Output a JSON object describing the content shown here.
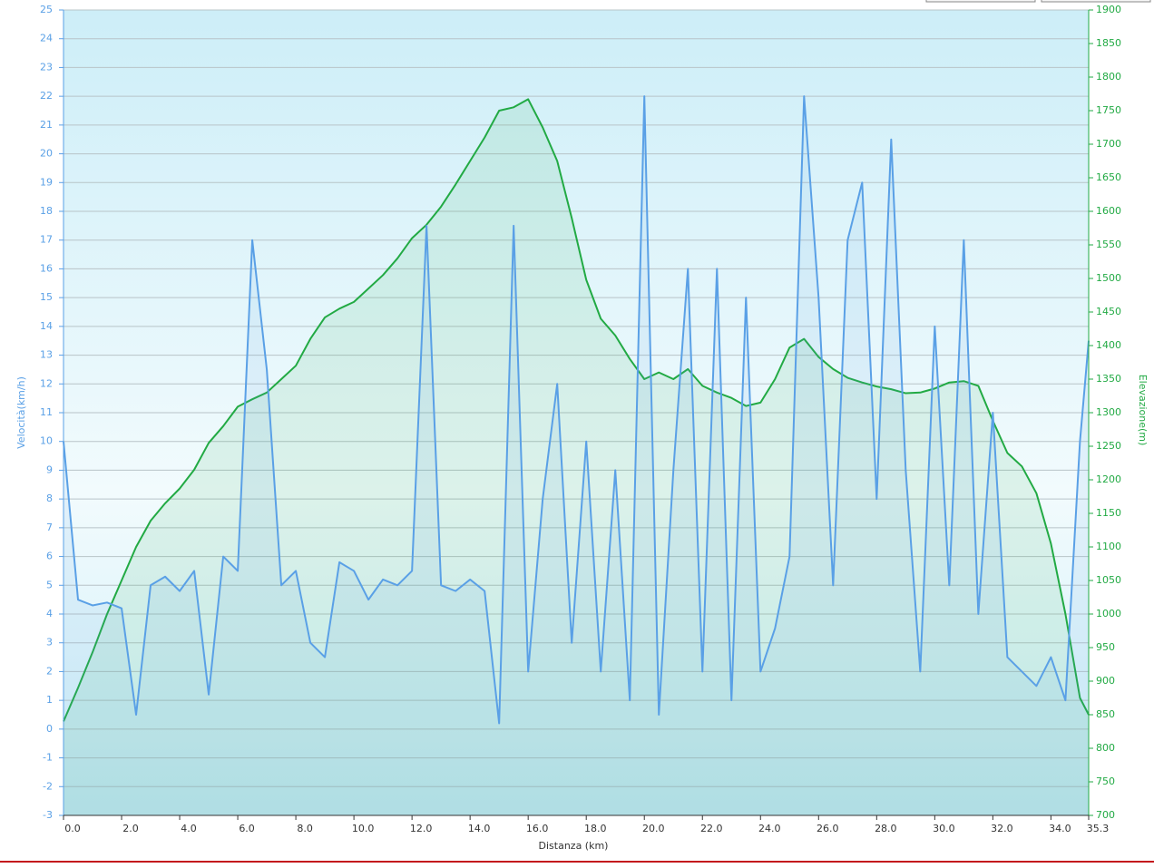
{
  "chart_data": {
    "type": "line",
    "x_label": "Distanza  (km)",
    "y_label": "Velocità(km/h)",
    "y2_label": "Elevazione(m)",
    "x": [
      0,
      0.5,
      1,
      1.5,
      2,
      2.5,
      3,
      3.5,
      4,
      4.5,
      5,
      5.5,
      6,
      6.5,
      7,
      7.5,
      8,
      8.5,
      9,
      9.5,
      10,
      10.5,
      11,
      11.5,
      12,
      12.5,
      13,
      13.5,
      14,
      14.5,
      15,
      15.5,
      16,
      16.5,
      17,
      17.5,
      18,
      18.5,
      19,
      19.5,
      20,
      20.5,
      21,
      21.5,
      22,
      22.5,
      23,
      23.5,
      24,
      24.5,
      25,
      25.5,
      26,
      26.5,
      27,
      27.5,
      28,
      28.5,
      29,
      29.5,
      30,
      30.5,
      31,
      31.5,
      32,
      32.5,
      33,
      33.5,
      34,
      34.5,
      35,
      35.3
    ],
    "series": [
      {
        "name": "Velocità",
        "color": "#5aa0e6",
        "axis": "y",
        "values": [
          10,
          4.5,
          4.3,
          4.4,
          4.2,
          0.5,
          5,
          5.3,
          4.8,
          5.5,
          1.2,
          6,
          5.5,
          17,
          12.5,
          5,
          5.5,
          3,
          2.5,
          5.8,
          5.5,
          4.5,
          5.2,
          5,
          5.5,
          17.5,
          5,
          4.8,
          5.2,
          4.8,
          0.2,
          17.5,
          2,
          8,
          12,
          3,
          10,
          2,
          9,
          1,
          22,
          0.5,
          9,
          16,
          2,
          16,
          1,
          15,
          2,
          3.5,
          6,
          22,
          15,
          5,
          17,
          19,
          8,
          20.5,
          9,
          2,
          14,
          5,
          17,
          4,
          11,
          2.5,
          2,
          1.5,
          2.5,
          1,
          10,
          13.5
        ]
      },
      {
        "name": "Elevazione",
        "color": "#22aa44",
        "axis": "y2",
        "values": [
          840,
          890,
          943,
          1000,
          1050,
          1100,
          1139,
          1165,
          1187,
          1215,
          1255,
          1280,
          1309,
          1320,
          1330,
          1350,
          1370,
          1410,
          1442,
          1455,
          1465,
          1485,
          1505,
          1530,
          1560,
          1580,
          1607,
          1640,
          1675,
          1710,
          1750,
          1755,
          1767,
          1725,
          1675,
          1590,
          1498,
          1440,
          1415,
          1380,
          1350,
          1360,
          1350,
          1365,
          1340,
          1330,
          1322,
          1310,
          1315,
          1350,
          1397,
          1410,
          1383,
          1365,
          1352,
          1345,
          1339,
          1335,
          1329,
          1330,
          1336,
          1345,
          1347,
          1340,
          1288,
          1240,
          1220,
          1180,
          1105,
          1000,
          875,
          850
        ]
      }
    ],
    "xlim": [
      0,
      35.3
    ],
    "xticks": [
      {
        "value": 0,
        "label": "0.0"
      },
      {
        "value": 2,
        "label": "2.0"
      },
      {
        "value": 4,
        "label": "4.0"
      },
      {
        "value": 6,
        "label": "6.0"
      },
      {
        "value": 8,
        "label": "8.0"
      },
      {
        "value": 10,
        "label": "10.0"
      },
      {
        "value": 12,
        "label": "12.0"
      },
      {
        "value": 14,
        "label": "14.0"
      },
      {
        "value": 16,
        "label": "16.0"
      },
      {
        "value": 18,
        "label": "18.0"
      },
      {
        "value": 20,
        "label": "20.0"
      },
      {
        "value": 22,
        "label": "22.0"
      },
      {
        "value": 24,
        "label": "24.0"
      },
      {
        "value": 26,
        "label": "26.0"
      },
      {
        "value": 28,
        "label": "28.0"
      },
      {
        "value": 30,
        "label": "30.0"
      },
      {
        "value": 32,
        "label": "32.0"
      },
      {
        "value": 34,
        "label": "34.0"
      },
      35.3
    ],
    "ylim": [
      -3,
      25
    ],
    "yticks": [
      -3,
      -2,
      -1,
      0,
      1,
      2,
      3,
      4,
      5,
      6,
      7,
      8,
      9,
      10,
      11,
      12,
      13,
      14,
      15,
      16,
      17,
      18,
      19,
      20,
      21,
      22,
      23,
      24,
      25
    ],
    "y2lim": [
      700,
      1900
    ],
    "y2ticks": [
      700,
      750,
      800,
      850,
      900,
      950,
      1000,
      1050,
      1100,
      1150,
      1200,
      1250,
      1300,
      1350,
      1400,
      1450,
      1500,
      1550,
      1600,
      1650,
      1700,
      1750,
      1800,
      1850,
      1900
    ],
    "grid": true
  }
}
